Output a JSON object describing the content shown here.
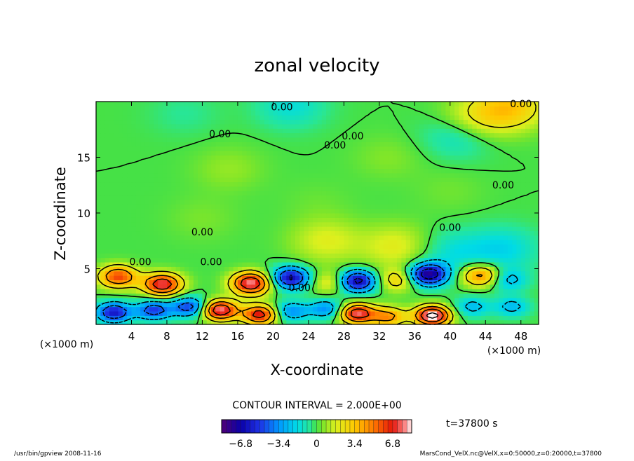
{
  "chart_data": {
    "type": "heatmap",
    "title": "zonal velocity",
    "xlabel": "X-coordinate",
    "ylabel": "Z-coordinate",
    "x_unit": "(×1000 m)",
    "z_unit": "(×1000 m)",
    "x_ticks": [
      "4",
      "8",
      "12",
      "16",
      "20",
      "24",
      "28",
      "32",
      "36",
      "40",
      "44",
      "48"
    ],
    "z_ticks": [
      "5",
      "10",
      "15"
    ],
    "xlim": [
      0,
      50
    ],
    "zlim": [
      0,
      20
    ],
    "contour_interval_text": "CONTOUR INTERVAL = 2.000E+00",
    "contour_label": "0.00",
    "time_text": "t=37800 s",
    "colorbar": {
      "range": [
        -8.5,
        8.5
      ],
      "ticks": [
        "−6.8",
        "−3.4",
        "0",
        "3.4",
        "6.8"
      ],
      "tick_values": [
        -6.8,
        -3.4,
        0,
        3.4,
        6.8
      ]
    },
    "footer_left": "/usr/bin/gpview   2008-11-16",
    "footer_right": "MarsCond_VelX.nc@VelX,x=0:50000,z=0:20000,t=37800",
    "features": [
      {
        "x": 2.5,
        "z": 4.3,
        "value": 6.0
      },
      {
        "x": 7.5,
        "z": 3.6,
        "value": 7.5
      },
      {
        "x": 17.5,
        "z": 3.7,
        "value": 8.0
      },
      {
        "x": 22.0,
        "z": 4.2,
        "value": -6.5
      },
      {
        "x": 26.5,
        "z": 3.8,
        "value": 2.5
      },
      {
        "x": 29.5,
        "z": 3.9,
        "value": -7.0
      },
      {
        "x": 34.0,
        "z": 4.0,
        "value": 3.0
      },
      {
        "x": 37.5,
        "z": 4.5,
        "value": -7.5
      },
      {
        "x": 43.5,
        "z": 4.4,
        "value": 5.0
      },
      {
        "x": 46.5,
        "z": 4.0,
        "value": -2.5
      },
      {
        "x": 2.0,
        "z": 1.1,
        "value": -6.0
      },
      {
        "x": 6.5,
        "z": 1.3,
        "value": -5.0
      },
      {
        "x": 10.5,
        "z": 1.6,
        "value": -5.0
      },
      {
        "x": 14.0,
        "z": 1.3,
        "value": 8.0
      },
      {
        "x": 18.5,
        "z": 0.9,
        "value": 7.0
      },
      {
        "x": 22.0,
        "z": 1.2,
        "value": -3.5
      },
      {
        "x": 26.0,
        "z": 1.4,
        "value": -3.5
      },
      {
        "x": 29.5,
        "z": 1.0,
        "value": 7.5
      },
      {
        "x": 33.0,
        "z": 0.7,
        "value": 4.5
      },
      {
        "x": 38.0,
        "z": 0.8,
        "value": 9.0
      },
      {
        "x": 42.5,
        "z": 1.6,
        "value": -2.5
      },
      {
        "x": 47.0,
        "z": 1.6,
        "value": -2.5
      },
      {
        "x": 26.0,
        "z": 7.5,
        "value": 1.8
      },
      {
        "x": 34.0,
        "z": 7.0,
        "value": 2.0
      },
      {
        "x": 40.0,
        "z": 6.5,
        "value": -1.5
      },
      {
        "x": 46.0,
        "z": 6.8,
        "value": -1.8
      },
      {
        "x": 43.0,
        "z": 18.5,
        "value": 2.2
      },
      {
        "x": 47.0,
        "z": 19.5,
        "value": 3.0
      },
      {
        "x": 10.0,
        "z": 19.0,
        "value": -0.6
      },
      {
        "x": 22.0,
        "z": 19.6,
        "value": -1.5
      },
      {
        "x": 41.0,
        "z": 17.0,
        "value": -1.6
      },
      {
        "x": 15.0,
        "z": 14.0,
        "value": 0.8
      },
      {
        "x": 33.0,
        "z": 15.0,
        "value": 0.6
      },
      {
        "x": 40.0,
        "z": 12.0,
        "value": 0.4
      },
      {
        "x": 12.0,
        "z": 9.5,
        "value": 0.5
      },
      {
        "x": 25.0,
        "z": 11.0,
        "value": 0.3
      }
    ]
  }
}
